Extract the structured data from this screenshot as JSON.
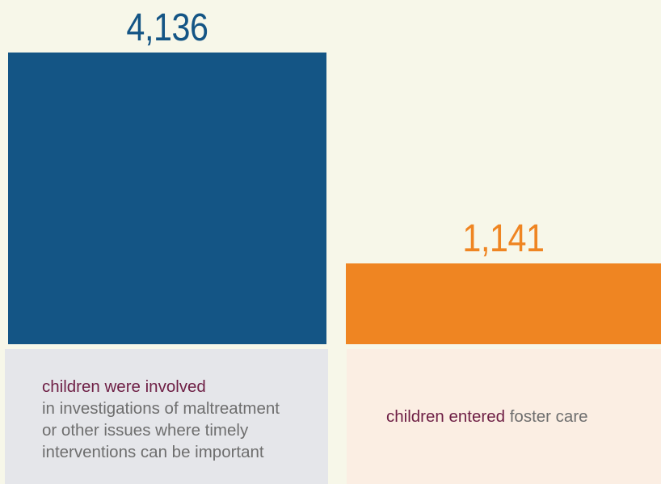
{
  "chart_data": {
    "type": "bar",
    "categories": [
      "children were involved",
      "children entered"
    ],
    "values": [
      4136,
      1141
    ],
    "value_labels": [
      "4,136",
      "1,141"
    ],
    "colors": [
      "#145585",
      "#ef8522"
    ],
    "label_colors": [
      "#145585",
      "#ef8522"
    ],
    "captions": [
      {
        "lead": "children were involved",
        "lines": [
          "in investigations of maltreatment",
          "or other issues where timely",
          "interventions can be important"
        ]
      },
      {
        "lead": "children entered",
        "rest": "foster care"
      }
    ],
    "legend": "none",
    "grid": false
  }
}
